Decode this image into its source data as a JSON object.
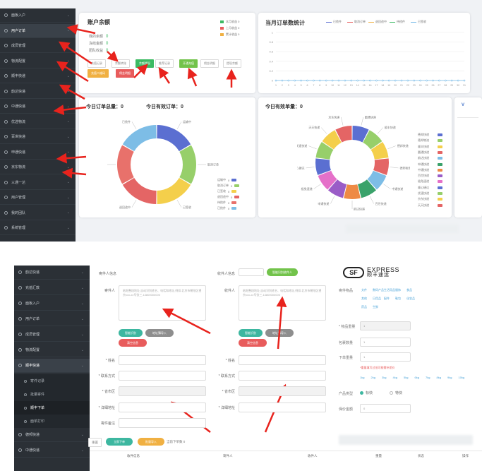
{
  "top_sidebar": {
    "items": [
      {
        "label": "面板入户"
      },
      {
        "label": "用户订单"
      },
      {
        "label": "成员管理"
      },
      {
        "label": "物流配置"
      },
      {
        "label": "顺丰快递"
      },
      {
        "label": "韵达快递"
      },
      {
        "label": "中通快递"
      },
      {
        "label": "优选物流"
      },
      {
        "label": "百世快递"
      },
      {
        "label": "申通快递"
      },
      {
        "label": "京东物流"
      },
      {
        "label": "三通一达"
      },
      {
        "label": "用户管理"
      },
      {
        "label": "我的团队"
      },
      {
        "label": "系统管理"
      }
    ]
  },
  "balance_card": {
    "title": "账户余额",
    "rows": [
      {
        "label": "我的余额",
        "value": "0"
      },
      {
        "label": "冻结金额",
        "value": "0"
      },
      {
        "label": "团队收益",
        "value": "0"
      }
    ],
    "legend": [
      {
        "label": "本月收益 0",
        "color": "#3cba63"
      },
      {
        "label": "上月收益 0",
        "color": "#e85c5c"
      },
      {
        "label": "累计收益 0",
        "color": "#f0b042"
      }
    ],
    "buttons": [
      "充值记录",
      "余额转账",
      "余额提现",
      "推荐记录",
      "开通充值",
      "佣金明细",
      "提现余额"
    ],
    "extra_buttons": [
      "充值二维码",
      "佣金明细"
    ]
  },
  "line_chart": {
    "title": "当月订单数统计",
    "legend": [
      "已揽件",
      "取消订单",
      "退回途中",
      "待揽件",
      "已签收"
    ],
    "legend_colors": [
      "#5b6fd1",
      "#e85c5c",
      "#f0b042",
      "#3cba63",
      "#74b9e7"
    ],
    "x": [
      "1",
      "2",
      "3",
      "4",
      "5",
      "6",
      "7",
      "8",
      "9",
      "10",
      "11",
      "12",
      "13",
      "14",
      "15",
      "16",
      "17",
      "18",
      "19",
      "20",
      "21",
      "22",
      "23",
      "24",
      "25",
      "26",
      "27",
      "28",
      "29",
      "30",
      "31"
    ],
    "y_ticks": [
      "1",
      "0.8",
      "0.6",
      "0.4",
      "0.2",
      "0"
    ],
    "ylim": [
      0,
      1
    ]
  },
  "today_card": {
    "label_total": "今日订单总量：",
    "total": "0",
    "label_valid": "今日有效订单：",
    "valid": "0",
    "chart_data": {
      "type": "pie",
      "categories": [
        "运输中",
        "取消订单",
        "已签收",
        "退回途中",
        "待揽件",
        "已揽件"
      ],
      "values": [
        1,
        1,
        1,
        1,
        1,
        1
      ],
      "colors": [
        "#5b6fd1",
        "#97cf6a",
        "#f4cf4b",
        "#e46565",
        "#e8716b",
        "#7dbde6"
      ],
      "legend_suffix": "0"
    }
  },
  "valid_card": {
    "label": "今日有效单量：",
    "value": "0",
    "chart_data": {
      "type": "pie",
      "categories": [
        "圆通快递",
        "顺丰快递",
        "德邦快递",
        "德邦物流",
        "中通快递",
        "百世快递",
        "韵达快递",
        "申通快递",
        "极兔速递",
        "顺心捷达",
        "优速快递",
        "天天快递",
        "京东快递"
      ],
      "values": [
        1,
        1,
        1,
        1,
        1,
        1,
        1,
        1,
        1,
        1,
        1,
        1,
        1
      ],
      "colors": [
        "#5b6fd1",
        "#97cf6a",
        "#f4cf4b",
        "#e46565",
        "#7dbde6",
        "#3aa26a",
        "#ee8a45",
        "#9a5cc7",
        "#e570c9",
        "#5b6fd1",
        "#97cf6a",
        "#f4cf4b",
        "#e46565"
      ],
      "legend": [
        "德邦快递",
        "德邦物流",
        "顺丰快递",
        "圆通快递",
        "韵达快递",
        "申通快递",
        "中通快递",
        "百世快递",
        "极兔速递",
        "顺心捷达",
        "优速快递",
        "京东快递",
        "天天快递"
      ]
    }
  },
  "side_stub": {
    "title": "V"
  },
  "bottom_sidebar": {
    "items": [
      {
        "label": "韵达快递",
        "type": "nav"
      },
      {
        "label": "充值汇款",
        "type": "nav"
      },
      {
        "label": "面板入户",
        "type": "nav"
      },
      {
        "label": "用户订单",
        "type": "nav"
      },
      {
        "label": "成员管理",
        "type": "nav"
      },
      {
        "label": "物流配置",
        "type": "nav"
      },
      {
        "label": "顺丰快递",
        "type": "nav-open"
      },
      {
        "label": "寄件记录",
        "type": "sub"
      },
      {
        "label": "批量寄件",
        "type": "sub"
      },
      {
        "label": "顺丰下单",
        "type": "sub-active"
      },
      {
        "label": "面单打印",
        "type": "sub"
      },
      {
        "label": "德邦快递",
        "type": "nav"
      },
      {
        "label": "中通快递",
        "type": "nav"
      }
    ]
  },
  "form": {
    "sender_select_label": "寄件人信息",
    "receiver_select_label": "收件人信息",
    "receiver_select_button": "智能识别收件人",
    "sender_label": "寄件人",
    "receiver_label": "收件人",
    "textarea_placeholder": "粘贴整段地址,自动识别姓名、电话和地址,例如:北京市朝阳区望京xxx-xx号张三,13800000000",
    "buttons_left": [
      "智能识别",
      "地址簿导入",
      "清空信息"
    ],
    "buttons_right": [
      "智能识别",
      "地址簿导入",
      "清空信息"
    ],
    "fields_left": [
      {
        "label": "* 姓名",
        "value": ""
      },
      {
        "label": "* 联系方式",
        "value": ""
      },
      {
        "label": "* 省市区",
        "value": ""
      },
      {
        "label": "* 详细地址",
        "value": ""
      },
      {
        "label": "寄件备注",
        "value": ""
      }
    ],
    "fields_right": [
      {
        "label": "* 姓名",
        "value": ""
      },
      {
        "label": "* 联系方式",
        "value": ""
      },
      {
        "label": "* 省市区",
        "value": ""
      },
      {
        "label": "* 详细地址",
        "value": ""
      }
    ],
    "actions": [
      "重置",
      "立即下单",
      "批量导入",
      "当前下单数 0"
    ]
  },
  "express": {
    "logo_letters": "SF",
    "logo_top": "EXPRESS",
    "logo_cn": "顺丰速运",
    "goods_label": "寄件物品",
    "goods": [
      "文件",
      "数码产品",
      "生活用品",
      "服饰",
      "食品",
      "其他",
      "日用品",
      "配件",
      "鞋包",
      "化妆品",
      "药品",
      "生鲜"
    ],
    "weight_label": "* 物品重量",
    "weight_value": "1",
    "count_label": "包裹数量",
    "count_value": "1",
    "volume_label": "下单重量",
    "warning": "*重量填写过低可能需补差价",
    "weights": [
      "1kg",
      "2kg",
      "3kg",
      "4kg",
      "5kg",
      "6kg",
      "7kg",
      "8kg",
      "9kg",
      "10kg"
    ],
    "insure_label": "产品类型",
    "insure_opt1": "标快",
    "insure_opt2": "特快",
    "price_label": "保价金额",
    "price_value": "0"
  },
  "table": {
    "headers": [
      "收件信息",
      "寄件人",
      "收件人",
      "重量",
      "状态",
      "操作"
    ]
  },
  "colors": {
    "sidebar": "#2b3036",
    "arrow": "#e8231d",
    "accent": "#3cba63"
  }
}
